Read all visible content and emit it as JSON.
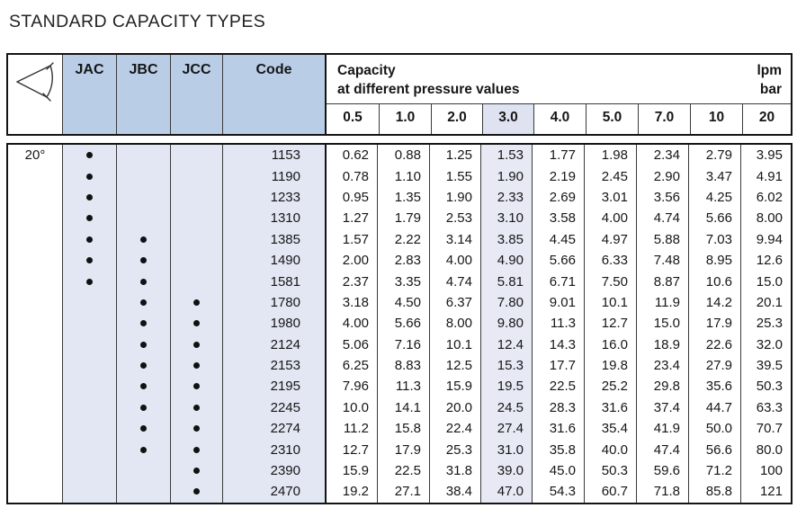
{
  "title": "STANDARD CAPACITY TYPES",
  "colors": {
    "header_fill": "#b9cde7",
    "column_tint": "#e3e7f3",
    "highlight_tint_body": "#e7eaf5",
    "highlight_tint_header": "#dfe3f1",
    "grid_line": "#3a3a3a",
    "border": "#141414"
  },
  "header": {
    "angle_icon": "spray-angle-icon",
    "type_columns": [
      "JAC",
      "JBC",
      "JCC"
    ],
    "code_label": "Code",
    "capacity_line1": "Capacity",
    "capacity_line2": "at different pressure values",
    "unit_line1": "lpm",
    "unit_line2": "bar",
    "pressures": [
      "0.5",
      "1.0",
      "2.0",
      "3.0",
      "4.0",
      "5.0",
      "7.0",
      "10",
      "20"
    ],
    "highlight_pressure_index": 3
  },
  "body": {
    "angle_label": "20°",
    "rows": [
      {
        "jac": true,
        "jbc": false,
        "jcc": false,
        "code": "1153",
        "values": [
          "0.62",
          "0.88",
          "1.25",
          "1.53",
          "1.77",
          "1.98",
          "2.34",
          "2.79",
          "3.95"
        ]
      },
      {
        "jac": true,
        "jbc": false,
        "jcc": false,
        "code": "1190",
        "values": [
          "0.78",
          "1.10",
          "1.55",
          "1.90",
          "2.19",
          "2.45",
          "2.90",
          "3.47",
          "4.91"
        ]
      },
      {
        "jac": true,
        "jbc": false,
        "jcc": false,
        "code": "1233",
        "values": [
          "0.95",
          "1.35",
          "1.90",
          "2.33",
          "2.69",
          "3.01",
          "3.56",
          "4.25",
          "6.02"
        ]
      },
      {
        "jac": true,
        "jbc": false,
        "jcc": false,
        "code": "1310",
        "values": [
          "1.27",
          "1.79",
          "2.53",
          "3.10",
          "3.58",
          "4.00",
          "4.74",
          "5.66",
          "8.00"
        ]
      },
      {
        "jac": true,
        "jbc": true,
        "jcc": false,
        "code": "1385",
        "values": [
          "1.57",
          "2.22",
          "3.14",
          "3.85",
          "4.45",
          "4.97",
          "5.88",
          "7.03",
          "9.94"
        ]
      },
      {
        "jac": true,
        "jbc": true,
        "jcc": false,
        "code": "1490",
        "values": [
          "2.00",
          "2.83",
          "4.00",
          "4.90",
          "5.66",
          "6.33",
          "7.48",
          "8.95",
          "12.6"
        ]
      },
      {
        "jac": true,
        "jbc": true,
        "jcc": false,
        "code": "1581",
        "values": [
          "2.37",
          "3.35",
          "4.74",
          "5.81",
          "6.71",
          "7.50",
          "8.87",
          "10.6",
          "15.0"
        ]
      },
      {
        "jac": false,
        "jbc": true,
        "jcc": true,
        "code": "1780",
        "values": [
          "3.18",
          "4.50",
          "6.37",
          "7.80",
          "9.01",
          "10.1",
          "11.9",
          "14.2",
          "20.1"
        ]
      },
      {
        "jac": false,
        "jbc": true,
        "jcc": true,
        "code": "1980",
        "values": [
          "4.00",
          "5.66",
          "8.00",
          "9.80",
          "11.3",
          "12.7",
          "15.0",
          "17.9",
          "25.3"
        ]
      },
      {
        "jac": false,
        "jbc": true,
        "jcc": true,
        "code": "2124",
        "values": [
          "5.06",
          "7.16",
          "10.1",
          "12.4",
          "14.3",
          "16.0",
          "18.9",
          "22.6",
          "32.0"
        ]
      },
      {
        "jac": false,
        "jbc": true,
        "jcc": true,
        "code": "2153",
        "values": [
          "6.25",
          "8.83",
          "12.5",
          "15.3",
          "17.7",
          "19.8",
          "23.4",
          "27.9",
          "39.5"
        ]
      },
      {
        "jac": false,
        "jbc": true,
        "jcc": true,
        "code": "2195",
        "values": [
          "7.96",
          "11.3",
          "15.9",
          "19.5",
          "22.5",
          "25.2",
          "29.8",
          "35.6",
          "50.3"
        ]
      },
      {
        "jac": false,
        "jbc": true,
        "jcc": true,
        "code": "2245",
        "values": [
          "10.0",
          "14.1",
          "20.0",
          "24.5",
          "28.3",
          "31.6",
          "37.4",
          "44.7",
          "63.3"
        ]
      },
      {
        "jac": false,
        "jbc": true,
        "jcc": true,
        "code": "2274",
        "values": [
          "11.2",
          "15.8",
          "22.4",
          "27.4",
          "31.6",
          "35.4",
          "41.9",
          "50.0",
          "70.7"
        ]
      },
      {
        "jac": false,
        "jbc": true,
        "jcc": true,
        "code": "2310",
        "values": [
          "12.7",
          "17.9",
          "25.3",
          "31.0",
          "35.8",
          "40.0",
          "47.4",
          "56.6",
          "80.0"
        ]
      },
      {
        "jac": false,
        "jbc": false,
        "jcc": true,
        "code": "2390",
        "values": [
          "15.9",
          "22.5",
          "31.8",
          "39.0",
          "45.0",
          "50.3",
          "59.6",
          "71.2",
          "100"
        ]
      },
      {
        "jac": false,
        "jbc": false,
        "jcc": true,
        "code": "2470",
        "values": [
          "19.2",
          "27.1",
          "38.4",
          "47.0",
          "54.3",
          "60.7",
          "71.8",
          "85.8",
          "121"
        ]
      }
    ]
  }
}
